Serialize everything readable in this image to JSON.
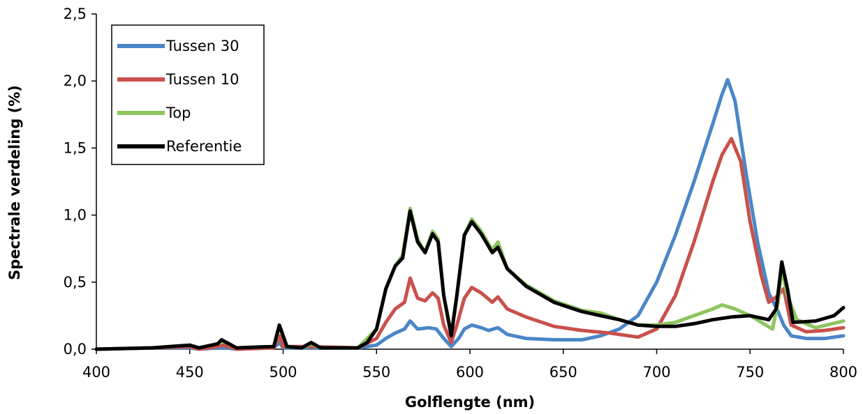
{
  "chart_data": {
    "type": "line",
    "title": "",
    "xlabel": "Golflengte (nm)",
    "ylabel": "Spectrale verdeling (%)",
    "xlim": [
      400,
      800
    ],
    "ylim": [
      0,
      2.5
    ],
    "x_ticks": [
      400,
      450,
      500,
      550,
      600,
      650,
      700,
      750,
      800
    ],
    "x_tick_labels": [
      "400",
      "450",
      "500",
      "550",
      "600",
      "650",
      "700",
      "750",
      "800"
    ],
    "y_ticks": [
      0,
      0.5,
      1.0,
      1.5,
      2.0,
      2.5
    ],
    "y_tick_labels": [
      "0,0",
      "0,5",
      "1,0",
      "1,5",
      "2,0",
      "2,5"
    ],
    "grid": false,
    "legend_position": "top-left",
    "series": [
      {
        "name": "Tussen 30",
        "color": "#4a86c8",
        "points": [
          [
            400,
            0
          ],
          [
            430,
            0.01
          ],
          [
            450,
            0.01
          ],
          [
            455,
            0
          ],
          [
            465,
            0.01
          ],
          [
            470,
            0.01
          ],
          [
            475,
            0
          ],
          [
            495,
            0.01
          ],
          [
            498,
            0.05
          ],
          [
            500,
            0.01
          ],
          [
            515,
            0.01
          ],
          [
            540,
            0.01
          ],
          [
            550,
            0.03
          ],
          [
            555,
            0.08
          ],
          [
            560,
            0.12
          ],
          [
            565,
            0.15
          ],
          [
            568,
            0.21
          ],
          [
            572,
            0.15
          ],
          [
            578,
            0.16
          ],
          [
            582,
            0.15
          ],
          [
            586,
            0.08
          ],
          [
            590,
            0.02
          ],
          [
            594,
            0.08
          ],
          [
            597,
            0.15
          ],
          [
            601,
            0.18
          ],
          [
            606,
            0.16
          ],
          [
            610,
            0.14
          ],
          [
            615,
            0.16
          ],
          [
            620,
            0.11
          ],
          [
            630,
            0.08
          ],
          [
            645,
            0.07
          ],
          [
            660,
            0.07
          ],
          [
            670,
            0.1
          ],
          [
            680,
            0.15
          ],
          [
            690,
            0.25
          ],
          [
            700,
            0.5
          ],
          [
            710,
            0.85
          ],
          [
            720,
            1.25
          ],
          [
            730,
            1.68
          ],
          [
            735,
            1.9
          ],
          [
            738,
            2.01
          ],
          [
            742,
            1.85
          ],
          [
            748,
            1.3
          ],
          [
            754,
            0.8
          ],
          [
            760,
            0.42
          ],
          [
            765,
            0.28
          ],
          [
            768,
            0.18
          ],
          [
            772,
            0.1
          ],
          [
            780,
            0.08
          ],
          [
            790,
            0.08
          ],
          [
            800,
            0.1
          ]
        ]
      },
      {
        "name": "Tussen 10",
        "color": "#c9504c",
        "points": [
          [
            400,
            0
          ],
          [
            430,
            0.01
          ],
          [
            450,
            0.02
          ],
          [
            455,
            0
          ],
          [
            465,
            0.02
          ],
          [
            468,
            0.03
          ],
          [
            475,
            0
          ],
          [
            495,
            0.01
          ],
          [
            498,
            0.1
          ],
          [
            500,
            0.02
          ],
          [
            515,
            0.02
          ],
          [
            540,
            0.01
          ],
          [
            550,
            0.08
          ],
          [
            555,
            0.2
          ],
          [
            560,
            0.3
          ],
          [
            565,
            0.35
          ],
          [
            568,
            0.53
          ],
          [
            572,
            0.38
          ],
          [
            576,
            0.36
          ],
          [
            580,
            0.42
          ],
          [
            583,
            0.38
          ],
          [
            586,
            0.18
          ],
          [
            590,
            0.05
          ],
          [
            593,
            0.18
          ],
          [
            597,
            0.38
          ],
          [
            601,
            0.46
          ],
          [
            606,
            0.42
          ],
          [
            612,
            0.35
          ],
          [
            615,
            0.39
          ],
          [
            620,
            0.3
          ],
          [
            630,
            0.24
          ],
          [
            645,
            0.17
          ],
          [
            660,
            0.14
          ],
          [
            675,
            0.12
          ],
          [
            690,
            0.09
          ],
          [
            700,
            0.15
          ],
          [
            710,
            0.4
          ],
          [
            720,
            0.8
          ],
          [
            730,
            1.25
          ],
          [
            735,
            1.45
          ],
          [
            740,
            1.57
          ],
          [
            745,
            1.4
          ],
          [
            750,
            0.95
          ],
          [
            756,
            0.55
          ],
          [
            760,
            0.35
          ],
          [
            765,
            0.4
          ],
          [
            768,
            0.45
          ],
          [
            772,
            0.18
          ],
          [
            780,
            0.13
          ],
          [
            790,
            0.14
          ],
          [
            800,
            0.16
          ]
        ]
      },
      {
        "name": "Top",
        "color": "#8dc55f",
        "points": [
          [
            400,
            0
          ],
          [
            430,
            0.01
          ],
          [
            450,
            0.03
          ],
          [
            455,
            0.01
          ],
          [
            465,
            0.04
          ],
          [
            468,
            0.06
          ],
          [
            475,
            0.01
          ],
          [
            495,
            0.02
          ],
          [
            498,
            0.17
          ],
          [
            502,
            0.02
          ],
          [
            510,
            0.01
          ],
          [
            515,
            0.04
          ],
          [
            520,
            0.01
          ],
          [
            540,
            0.01
          ],
          [
            550,
            0.15
          ],
          [
            555,
            0.45
          ],
          [
            560,
            0.62
          ],
          [
            564,
            0.7
          ],
          [
            568,
            1.05
          ],
          [
            572,
            0.82
          ],
          [
            576,
            0.72
          ],
          [
            580,
            0.88
          ],
          [
            583,
            0.82
          ],
          [
            586,
            0.4
          ],
          [
            590,
            0.12
          ],
          [
            593,
            0.4
          ],
          [
            597,
            0.85
          ],
          [
            601,
            0.97
          ],
          [
            606,
            0.88
          ],
          [
            612,
            0.74
          ],
          [
            615,
            0.8
          ],
          [
            620,
            0.6
          ],
          [
            630,
            0.48
          ],
          [
            645,
            0.36
          ],
          [
            660,
            0.29
          ],
          [
            670,
            0.27
          ],
          [
            680,
            0.22
          ],
          [
            690,
            0.18
          ],
          [
            700,
            0.18
          ],
          [
            710,
            0.2
          ],
          [
            720,
            0.25
          ],
          [
            730,
            0.3
          ],
          [
            735,
            0.33
          ],
          [
            742,
            0.3
          ],
          [
            750,
            0.25
          ],
          [
            756,
            0.2
          ],
          [
            762,
            0.15
          ],
          [
            765,
            0.35
          ],
          [
            767,
            0.6
          ],
          [
            770,
            0.4
          ],
          [
            775,
            0.22
          ],
          [
            785,
            0.16
          ],
          [
            800,
            0.21
          ]
        ]
      },
      {
        "name": "Referentie",
        "color": "#000000",
        "points": [
          [
            400,
            0
          ],
          [
            430,
            0.01
          ],
          [
            450,
            0.03
          ],
          [
            455,
            0.01
          ],
          [
            465,
            0.04
          ],
          [
            467,
            0.07
          ],
          [
            475,
            0.01
          ],
          [
            495,
            0.02
          ],
          [
            498,
            0.18
          ],
          [
            502,
            0.02
          ],
          [
            510,
            0.01
          ],
          [
            515,
            0.05
          ],
          [
            520,
            0.01
          ],
          [
            540,
            0.01
          ],
          [
            545,
            0.05
          ],
          [
            550,
            0.15
          ],
          [
            555,
            0.45
          ],
          [
            560,
            0.62
          ],
          [
            564,
            0.68
          ],
          [
            568,
            1.03
          ],
          [
            572,
            0.8
          ],
          [
            576,
            0.72
          ],
          [
            580,
            0.86
          ],
          [
            583,
            0.8
          ],
          [
            586,
            0.4
          ],
          [
            590,
            0.1
          ],
          [
            593,
            0.4
          ],
          [
            597,
            0.85
          ],
          [
            601,
            0.95
          ],
          [
            606,
            0.86
          ],
          [
            612,
            0.72
          ],
          [
            615,
            0.76
          ],
          [
            620,
            0.6
          ],
          [
            630,
            0.47
          ],
          [
            645,
            0.35
          ],
          [
            660,
            0.28
          ],
          [
            670,
            0.25
          ],
          [
            680,
            0.22
          ],
          [
            690,
            0.18
          ],
          [
            700,
            0.17
          ],
          [
            710,
            0.17
          ],
          [
            720,
            0.19
          ],
          [
            730,
            0.22
          ],
          [
            740,
            0.24
          ],
          [
            750,
            0.25
          ],
          [
            760,
            0.22
          ],
          [
            764,
            0.3
          ],
          [
            767,
            0.65
          ],
          [
            770,
            0.45
          ],
          [
            773,
            0.2
          ],
          [
            785,
            0.21
          ],
          [
            795,
            0.25
          ],
          [
            800,
            0.31
          ]
        ]
      }
    ]
  }
}
